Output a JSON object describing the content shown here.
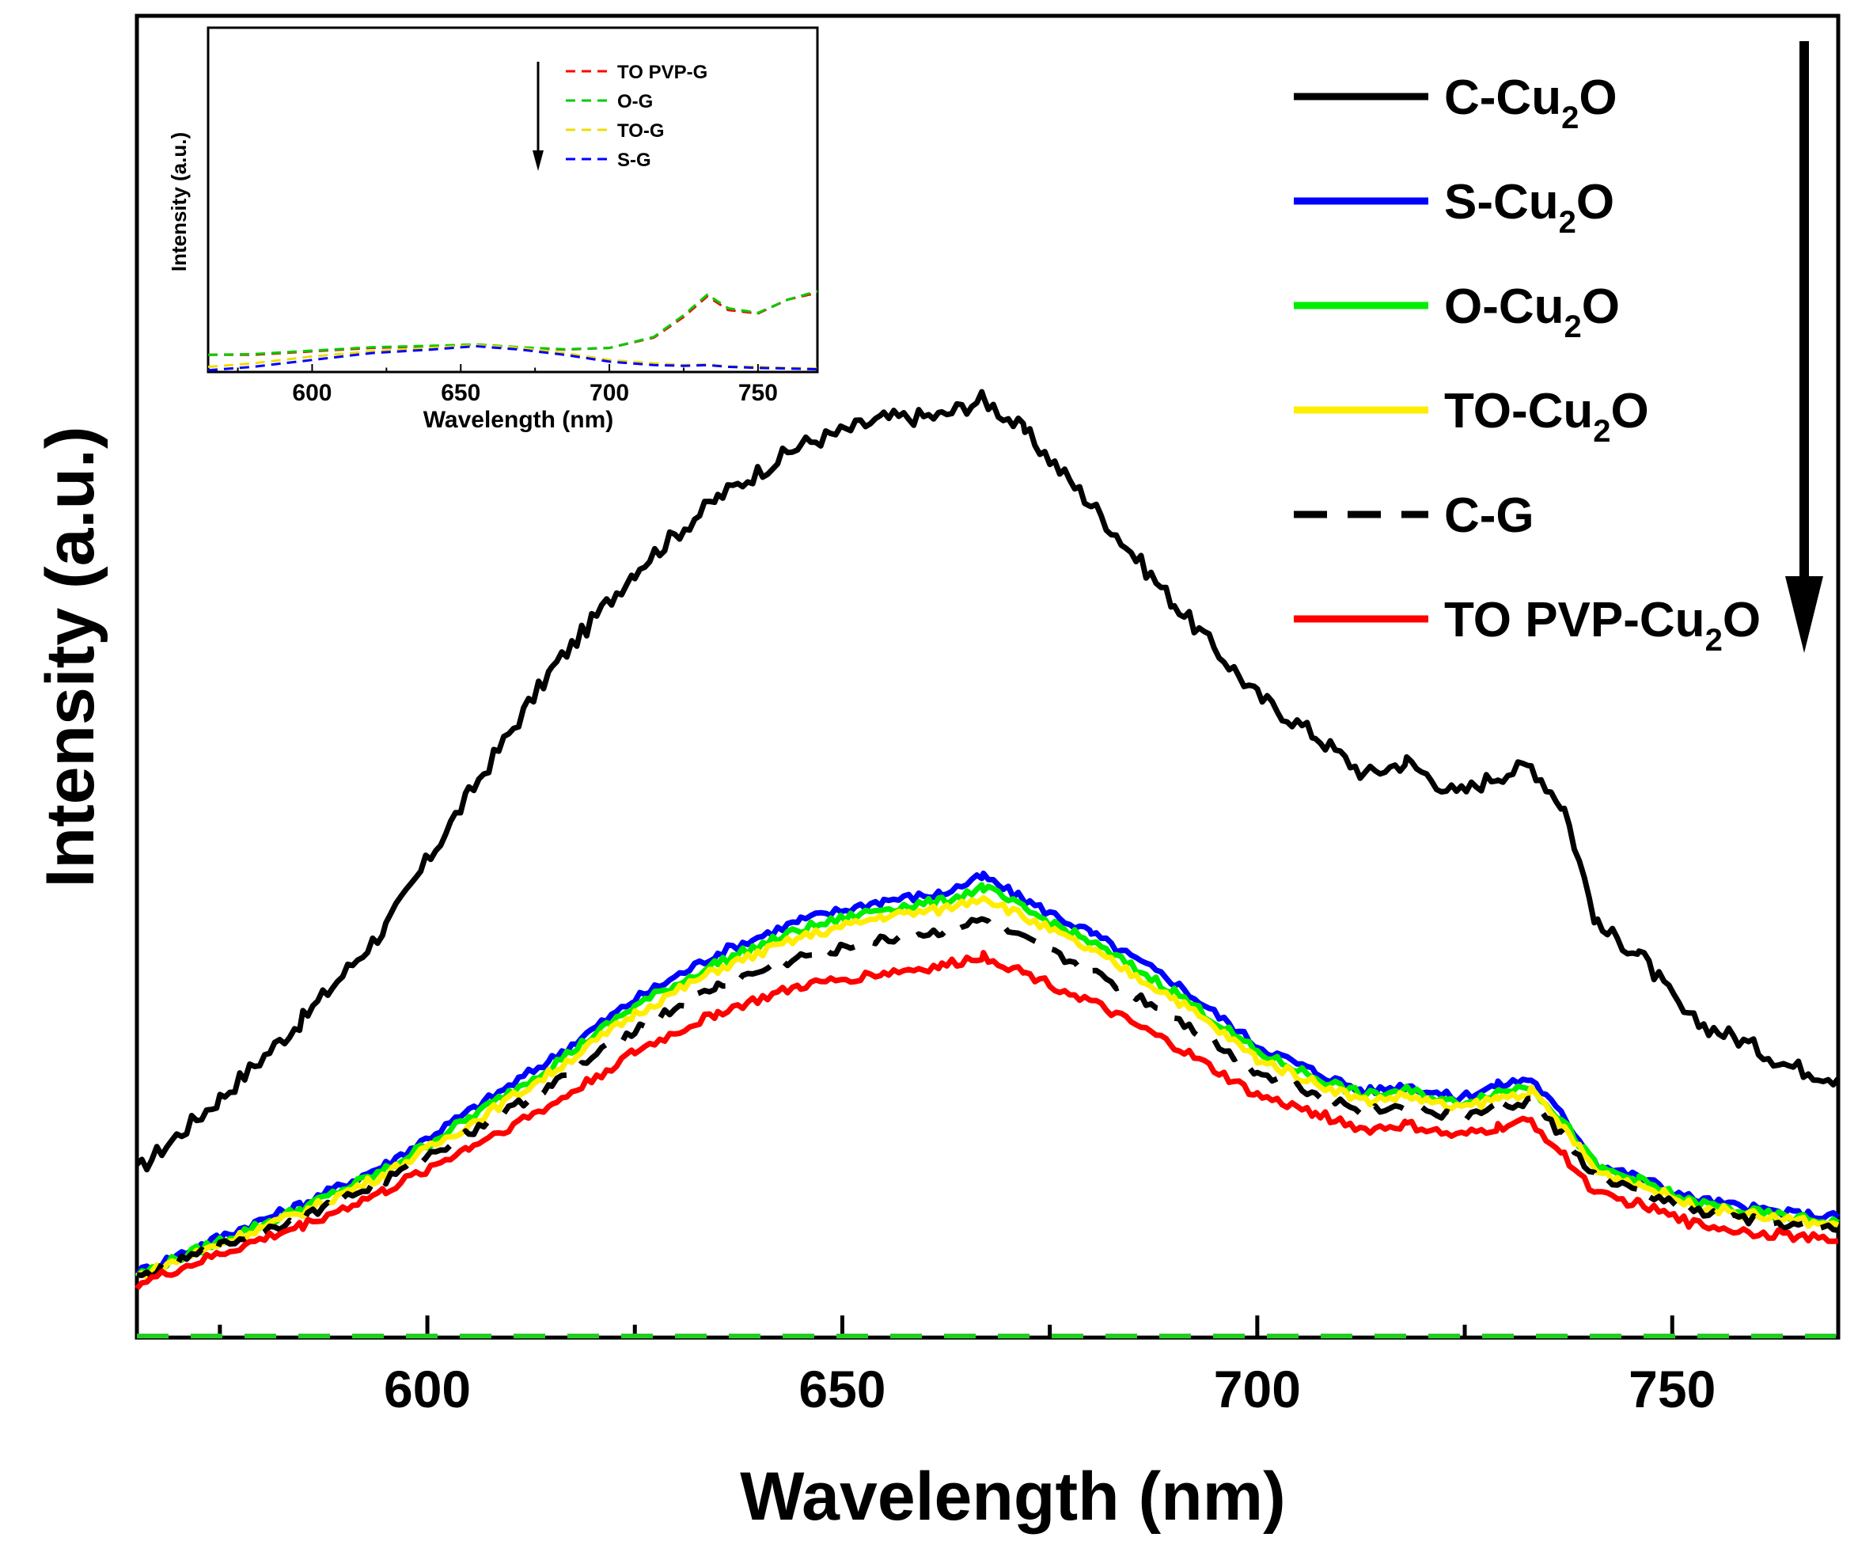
{
  "chart_data": [
    {
      "type": "line",
      "title": "",
      "xlabel": "Wavelength (nm)",
      "ylabel": "Intensity (a.u.)",
      "xlim": [
        565,
        770
      ],
      "ylim": [
        0,
        100
      ],
      "xticks": [
        600,
        650,
        700,
        750
      ],
      "y_tick_labels": false,
      "legend_position": "top-right",
      "arrow": "down",
      "x": [
        565,
        575,
        585,
        595,
        605,
        615,
        625,
        635,
        645,
        655,
        662,
        667,
        672,
        680,
        690,
        700,
        707,
        713,
        718,
        724,
        729,
        733,
        737,
        741,
        746,
        752,
        758,
        764,
        770
      ],
      "series": [
        {
          "name": "C-Cu",
          "sub": "2",
          "suffix": "O",
          "color": "#000000",
          "dash": "solid",
          "values": [
            12.5,
            18.0,
            24.0,
            31.0,
            41.0,
            50.5,
            58.0,
            63.5,
            67.5,
            69.5,
            69.7,
            71.0,
            68.5,
            63.0,
            55.5,
            48.5,
            45.5,
            42.5,
            43.5,
            41.0,
            42.5,
            43.2,
            40.0,
            31.0,
            29.0,
            24.0,
            22.5,
            20.5,
            19.5
          ]
        },
        {
          "name": "S-Cu",
          "sub": "2",
          "suffix": "O",
          "color": "#0000ff",
          "dash": "solid",
          "values": [
            4.8,
            7.5,
            10.0,
            13.0,
            17.0,
            21.0,
            25.5,
            29.0,
            31.5,
            33.0,
            33.5,
            34.8,
            33.0,
            30.5,
            26.8,
            22.0,
            20.0,
            18.5,
            19.0,
            18.0,
            19.0,
            19.5,
            16.5,
            13.0,
            12.0,
            10.5,
            9.8,
            9.3,
            9.0
          ]
        },
        {
          "name": "O-Cu",
          "sub": "2",
          "suffix": "O",
          "color": "#00ee00",
          "dash": "solid",
          "values": [
            4.6,
            7.2,
            9.7,
            12.6,
            16.5,
            20.5,
            25.0,
            28.3,
            30.8,
            32.4,
            32.9,
            34.0,
            32.3,
            29.8,
            26.1,
            21.5,
            19.6,
            18.2,
            18.6,
            17.6,
            18.5,
            19.0,
            16.1,
            12.7,
            11.8,
            10.2,
            9.5,
            9.0,
            8.6
          ]
        },
        {
          "name": "TO-Cu",
          "sub": "2",
          "suffix": "O",
          "color": "#ffee00",
          "dash": "solid",
          "values": [
            4.5,
            7.0,
            9.4,
            12.3,
            16.0,
            20.0,
            24.4,
            27.8,
            30.2,
            31.8,
            32.3,
            33.3,
            31.7,
            29.2,
            25.6,
            21.0,
            19.2,
            17.8,
            18.2,
            17.2,
            18.0,
            18.5,
            15.7,
            12.4,
            11.5,
            10.0,
            9.3,
            8.8,
            8.4
          ]
        },
        {
          "name": "C-G",
          "sub": "",
          "suffix": "",
          "color": "#000000",
          "dash": "dash",
          "values": [
            4.4,
            6.8,
            9.0,
            11.8,
            15.4,
            19.0,
            23.2,
            26.5,
            28.7,
            30.0,
            30.6,
            31.5,
            30.0,
            27.6,
            24.2,
            20.0,
            18.4,
            17.0,
            17.4,
            16.5,
            17.3,
            17.8,
            15.0,
            11.8,
            11.0,
            9.5,
            8.9,
            8.4,
            8.0
          ]
        },
        {
          "name": "TO PVP-Cu",
          "sub": "2",
          "suffix": "O",
          "color": "#ff0000",
          "dash": "solid",
          "values": [
            3.9,
            6.2,
            8.4,
            11.0,
            14.3,
            17.5,
            21.5,
            24.5,
            26.5,
            27.5,
            28.0,
            28.8,
            27.5,
            25.3,
            22.0,
            18.2,
            16.9,
            15.6,
            16.0,
            15.1,
            15.8,
            16.3,
            13.6,
            10.7,
            10.0,
            8.6,
            8.0,
            7.6,
            7.2
          ]
        }
      ]
    },
    {
      "type": "line",
      "title": "",
      "xlabel": "Wavelength (nm)",
      "ylabel": "Intensity (a.u.)",
      "xlim": [
        565,
        770
      ],
      "ylim": [
        0,
        100
      ],
      "xticks": [
        600,
        650,
        700,
        750
      ],
      "y_tick_labels": false,
      "legend_position": "top-center",
      "arrow": "down",
      "x": [
        565,
        580,
        600,
        620,
        640,
        655,
        670,
        685,
        700,
        715,
        725,
        733,
        740,
        750,
        760,
        770
      ],
      "series": [
        {
          "name": "TO PVP-G",
          "color": "#ff0000",
          "dash": "dash",
          "values": [
            5,
            5,
            6,
            7,
            7.5,
            8,
            7,
            6.5,
            7,
            10,
            16,
            22,
            18,
            17,
            21,
            23
          ]
        },
        {
          "name": "O-G",
          "color": "#00cc00",
          "dash": "dash",
          "values": [
            5,
            5.2,
            6.2,
            7.2,
            7.6,
            8,
            7.2,
            6.6,
            7,
            10.2,
            16.5,
            22.5,
            18.5,
            17.2,
            21,
            23.5
          ]
        },
        {
          "name": "TO-G",
          "color": "#eedd00",
          "dash": "dash",
          "values": [
            1.5,
            2.5,
            4.5,
            6,
            7,
            7.8,
            7,
            5.5,
            3.5,
            2.5,
            2,
            2.2,
            1.6,
            1.5,
            1.2,
            1
          ]
        },
        {
          "name": "S-G",
          "color": "#0000ff",
          "dash": "dash",
          "values": [
            0.5,
            1.5,
            3.5,
            5.5,
            6.5,
            7.5,
            6.5,
            5,
            3,
            2,
            1.8,
            2,
            1.5,
            1.2,
            1,
            0.8
          ]
        }
      ]
    }
  ]
}
